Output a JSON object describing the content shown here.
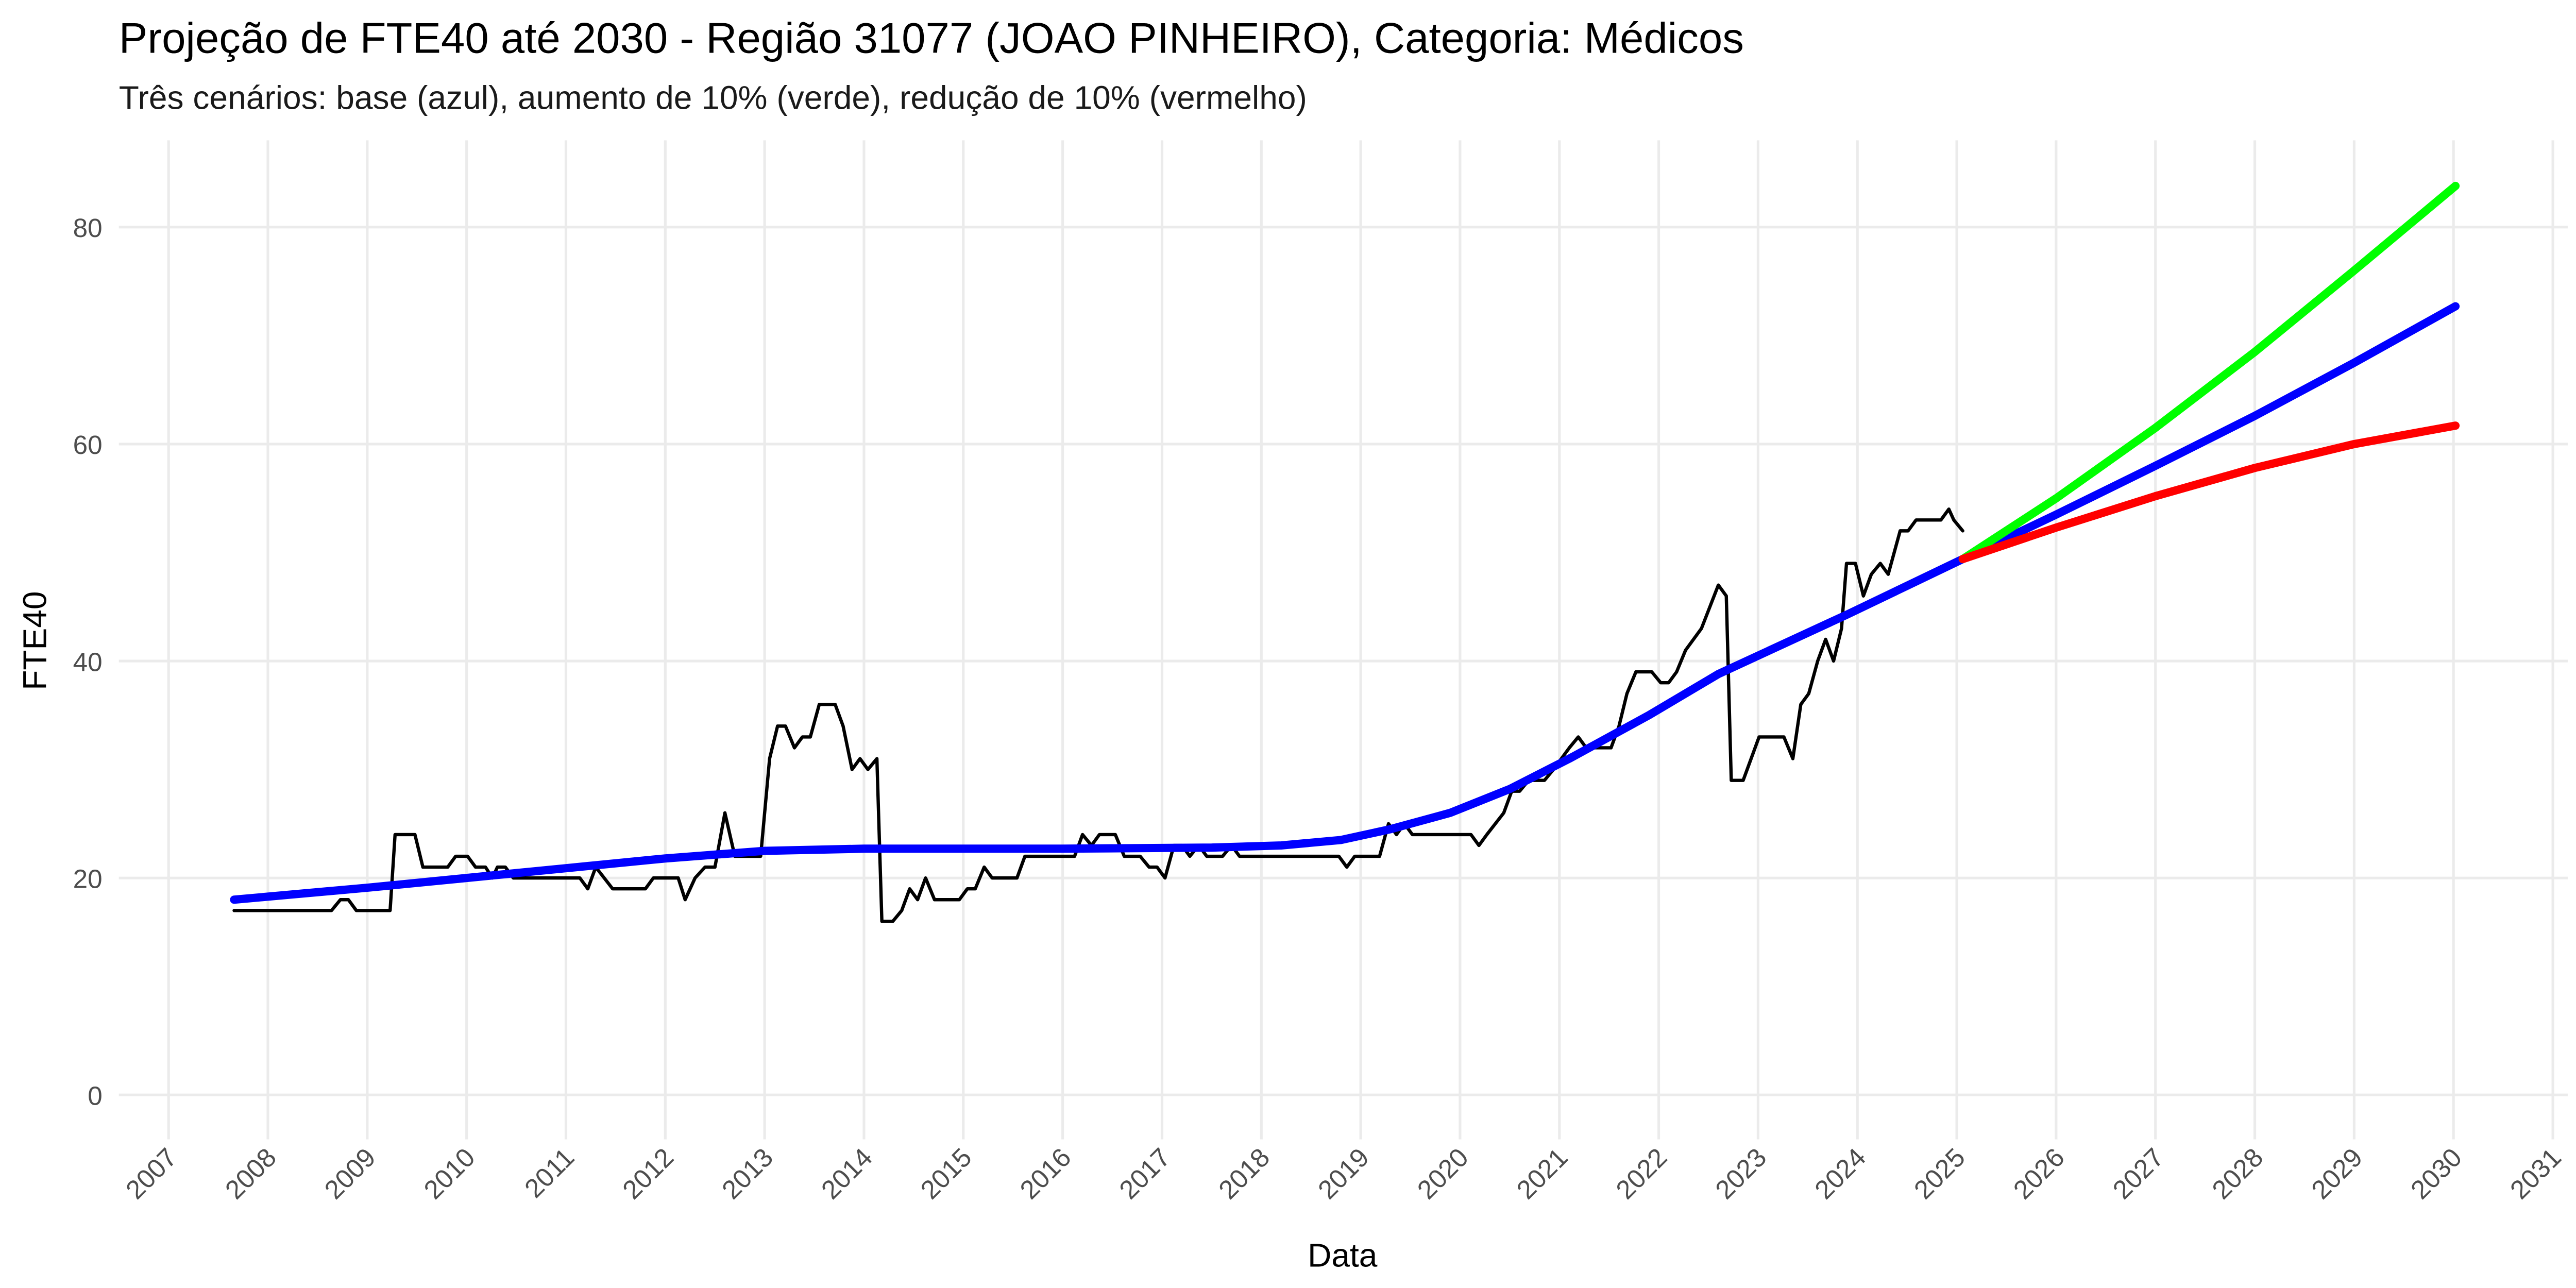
{
  "chart_data": {
    "type": "line",
    "title": "Projeção de FTE40 até 2030 - Região 31077 (JOAO PINHEIRO), Categoria: Médicos",
    "subtitle": "Três cenários: base (azul), aumento de 10% (verde), redução de 10% (vermelho)",
    "x_label": "Data",
    "y_label": "FTE40",
    "xlim": [
      2006.5,
      2031.15
    ],
    "ylim": [
      -4.1,
      88
    ],
    "xticks": [
      2007,
      2008,
      2009,
      2010,
      2011,
      2012,
      2013,
      2014,
      2015,
      2016,
      2017,
      2018,
      2019,
      2020,
      2021,
      2022,
      2023,
      2024,
      2025,
      2026,
      2027,
      2028,
      2029,
      2030,
      2031
    ],
    "yticks": [
      0,
      20,
      40,
      60,
      80
    ],
    "grid": true,
    "series": [
      {
        "color": "#000000",
        "width": 2,
        "x": [
          2007.66,
          2008.64,
          2008.73,
          2008.81,
          2008.89,
          2009.23,
          2009.28,
          2009.48,
          2009.56,
          2009.81,
          2009.89,
          2010.01,
          2010.09,
          2010.19,
          2010.26,
          2010.31,
          2010.39,
          2010.47,
          2011.14,
          2011.22,
          2011.3,
          2011.47,
          2011.8,
          2011.88,
          2012.13,
          2012.2,
          2012.3,
          2012.4,
          2012.5,
          2012.6,
          2012.7,
          2012.96,
          2013.05,
          2013.13,
          2013.21,
          2013.3,
          2013.38,
          2013.46,
          2013.55,
          2013.71,
          2013.79,
          2013.88,
          2013.96,
          2014.04,
          2014.13,
          2014.18,
          2014.29,
          2014.38,
          2014.46,
          2014.54,
          2014.62,
          2014.71,
          2014.96,
          2015.04,
          2015.12,
          2015.21,
          2015.29,
          2015.54,
          2015.62,
          2016.12,
          2016.2,
          2016.29,
          2016.37,
          2016.53,
          2016.62,
          2016.78,
          2016.87,
          2016.95,
          2017.03,
          2017.12,
          2017.2,
          2017.28,
          2017.37,
          2017.45,
          2017.61,
          2017.7,
          2017.78,
          2018.78,
          2018.86,
          2018.94,
          2019.19,
          2019.28,
          2019.36,
          2019.44,
          2019.52,
          2020.11,
          2020.19,
          2020.27,
          2020.44,
          2020.52,
          2020.6,
          2020.69,
          2020.85,
          2020.94,
          2021.1,
          2021.19,
          2021.27,
          2021.52,
          2021.6,
          2021.68,
          2021.77,
          2021.93,
          2022.02,
          2022.1,
          2022.18,
          2022.27,
          2022.43,
          2022.6,
          2022.68,
          2022.73,
          2022.85,
          2022.93,
          2023.01,
          2023.18,
          2023.26,
          2023.35,
          2023.43,
          2023.51,
          2023.6,
          2023.68,
          2023.76,
          2023.84,
          2023.89,
          2023.98,
          2024.06,
          2024.14,
          2024.23,
          2024.31,
          2024.43,
          2024.51,
          2024.59,
          2024.84,
          2024.92,
          2024.97,
          2025.06
        ],
        "values": [
          17,
          17,
          18,
          18,
          17,
          17,
          24,
          24,
          21,
          21,
          22,
          22,
          21,
          21,
          20,
          21,
          21,
          20,
          20,
          19,
          21,
          19,
          19,
          20,
          20,
          18,
          20,
          21,
          21,
          26,
          22,
          22,
          31,
          34,
          34,
          32,
          33,
          33,
          36,
          36,
          34,
          30,
          31,
          30,
          31,
          16,
          16,
          17,
          19,
          18,
          20,
          18,
          18,
          19,
          19,
          21,
          20,
          20,
          22,
          22,
          24,
          23,
          24,
          24,
          22,
          22,
          21,
          21,
          20,
          23,
          23,
          22,
          23,
          22,
          22,
          23,
          22,
          22,
          21,
          22,
          22,
          25,
          24,
          25,
          24,
          24,
          23,
          24,
          26,
          28,
          28,
          29,
          29,
          30,
          32,
          33,
          32,
          32,
          34,
          37,
          39,
          39,
          38,
          38,
          39,
          41,
          43,
          47,
          46,
          29,
          29,
          31,
          33,
          33,
          33,
          31,
          36,
          37,
          40,
          42,
          40,
          43,
          49,
          49,
          46,
          48,
          49,
          48,
          52,
          52,
          53,
          53,
          54,
          53,
          52
        ]
      },
      {
        "color": "#0000ff",
        "width": 5,
        "x": [
          2007.66,
          2009,
          2010,
          2011,
          2012,
          2013,
          2014,
          2016,
          2017.5,
          2018.2,
          2018.8,
          2019.3,
          2019.9,
          2020.5,
          2021.1,
          2021.9,
          2022.6,
          2023.9,
          2025.06,
          2026,
          2027,
          2028,
          2029,
          2030.02
        ],
        "values": [
          18,
          19.1,
          20,
          20.9,
          21.8,
          22.5,
          22.7,
          22.7,
          22.8,
          23,
          23.5,
          24.5,
          26,
          28.2,
          31,
          35,
          38.8,
          44.3,
          49.4,
          53.5,
          58,
          62.6,
          67.5,
          72.7
        ]
      },
      {
        "color": "#00ff00",
        "width": 5,
        "x": [
          2025.06,
          2026,
          2027,
          2028,
          2029,
          2030.02
        ],
        "values": [
          49.4,
          55,
          61.5,
          68.5,
          76,
          83.8
        ]
      },
      {
        "color": "#ff0000",
        "width": 5,
        "x": [
          2025.06,
          2026,
          2027,
          2028,
          2029,
          2030.02
        ],
        "values": [
          49.4,
          52.3,
          55.2,
          57.8,
          60,
          61.7
        ]
      }
    ]
  }
}
